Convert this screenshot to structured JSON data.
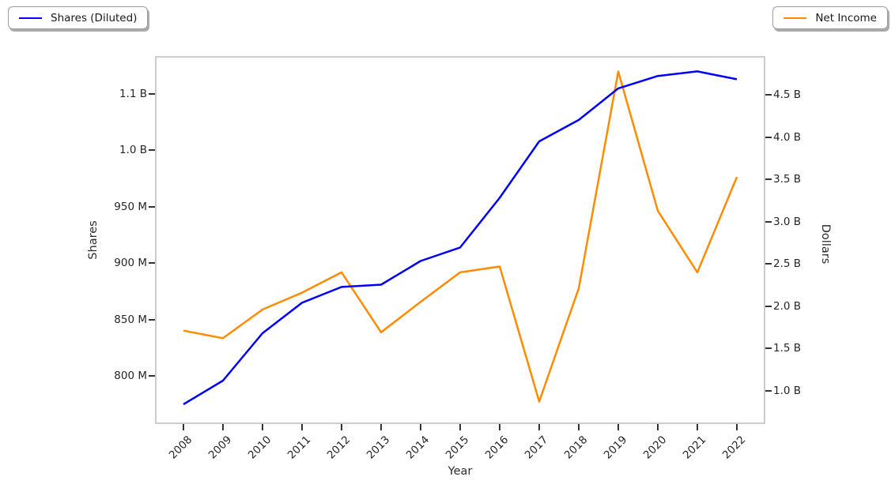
{
  "legend_left": {
    "label": "Shares (Diluted)"
  },
  "legend_right": {
    "label": "Net Income"
  },
  "axes": {
    "x": {
      "label": "Year",
      "ticks": [
        "2008",
        "2009",
        "2010",
        "2011",
        "2012",
        "2013",
        "2014",
        "2015",
        "2016",
        "2017",
        "2018",
        "2019",
        "2020",
        "2021",
        "2022"
      ]
    },
    "left": {
      "label": "Shares",
      "ticks": [
        {
          "label": "800 M",
          "value": 800
        },
        {
          "label": "850 M",
          "value": 850
        },
        {
          "label": "900 M",
          "value": 900
        },
        {
          "label": "950 M",
          "value": 950
        },
        {
          "label": "1.0 B",
          "value": 1000
        },
        {
          "label": "1.1 B",
          "value": 1050
        }
      ]
    },
    "right": {
      "label": "Dollars",
      "ticks": [
        {
          "label": "1.0 B",
          "value": 1.0
        },
        {
          "label": "1.5 B",
          "value": 1.5
        },
        {
          "label": "2.0 B",
          "value": 2.0
        },
        {
          "label": "2.5 B",
          "value": 2.5
        },
        {
          "label": "3.0 B",
          "value": 3.0
        },
        {
          "label": "3.5 B",
          "value": 3.5
        },
        {
          "label": "4.0 B",
          "value": 4.0
        },
        {
          "label": "4.5 B",
          "value": 4.5
        }
      ]
    }
  },
  "colors": {
    "shares_line": "#0000ff",
    "net_income_line": "#ff8c00",
    "plot_border": "#cccccc",
    "tick_text": "#262626"
  },
  "chart_data": {
    "type": "line",
    "x": [
      2008,
      2009,
      2010,
      2011,
      2012,
      2013,
      2014,
      2015,
      2016,
      2017,
      2018,
      2019,
      2020,
      2021,
      2022
    ],
    "series": [
      {
        "name": "Shares (Diluted)",
        "axis": "left",
        "unit": "millions of shares",
        "color": "#0000ff",
        "values": [
          775,
          796,
          838,
          865,
          879,
          881,
          902,
          914,
          958,
          1008,
          1027,
          1055,
          1066,
          1070,
          1063
        ]
      },
      {
        "name": "Net Income",
        "axis": "right",
        "unit": "billions of dollars",
        "color": "#ff8c00",
        "values": [
          1.71,
          1.62,
          1.96,
          2.16,
          2.4,
          1.69,
          2.05,
          2.4,
          2.47,
          0.87,
          2.21,
          4.78,
          3.13,
          2.4,
          3.53
        ]
      }
    ],
    "title": "",
    "xlabel": "Year",
    "ylabel_left": "Shares",
    "ylabel_right": "Dollars",
    "ylim_left_millions": [
      757.5,
      1083.6
    ],
    "ylim_right_billions": [
      0.603,
      4.963
    ],
    "grid": false,
    "legend_position": "shares legend outside upper-left; net income legend outside upper-right"
  }
}
